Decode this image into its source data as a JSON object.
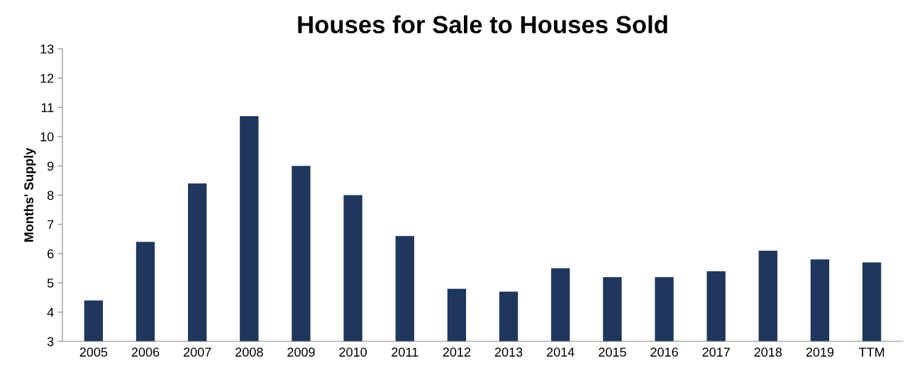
{
  "chart_data": {
    "type": "bar",
    "title": "Houses for Sale to Houses Sold",
    "ylabel": "Months' Supply",
    "categories": [
      "2005",
      "2006",
      "2007",
      "2008",
      "2009",
      "2010",
      "2011",
      "2012",
      "2013",
      "2014",
      "2015",
      "2016",
      "2017",
      "2018",
      "2019",
      "TTM"
    ],
    "values": [
      4.4,
      6.4,
      8.4,
      10.7,
      9.0,
      8.0,
      6.6,
      4.8,
      4.7,
      5.5,
      5.2,
      5.2,
      5.4,
      6.1,
      5.8,
      5.7
    ],
    "color": "#1f375c",
    "ylim": [
      3,
      13
    ],
    "yticks": [
      3,
      4,
      5,
      6,
      7,
      8,
      9,
      10,
      11,
      12,
      13
    ],
    "grid": false,
    "legend": false
  }
}
